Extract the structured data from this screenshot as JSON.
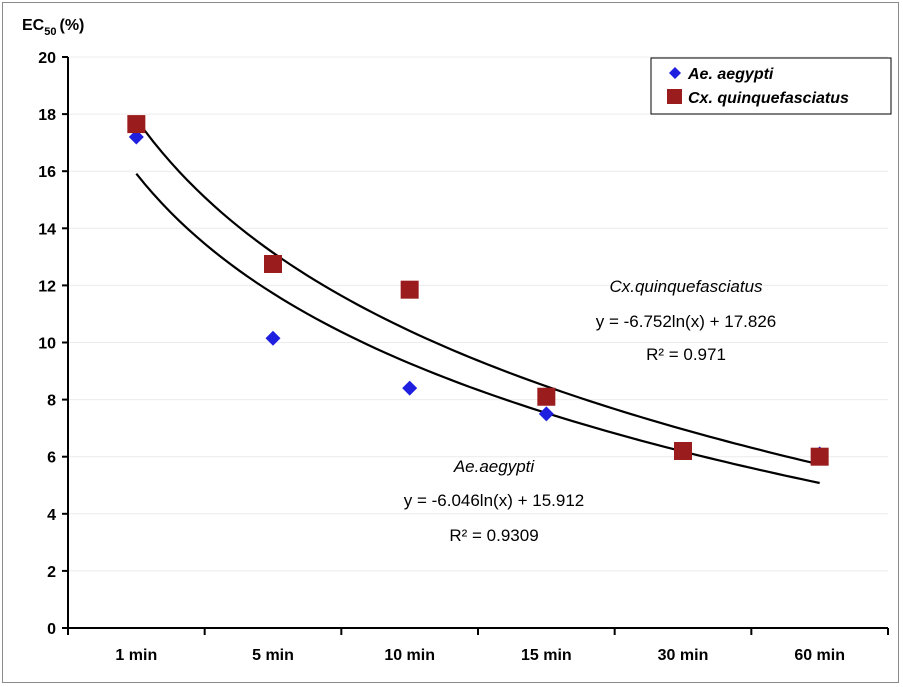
{
  "chart_data": {
    "type": "scatter",
    "ylabel": "EC",
    "ylabel_sub": "50",
    "ylabel_unit": "(%)",
    "categories": [
      "1 min",
      "5 min",
      "10 min",
      "15 min",
      "30 min",
      "60 min"
    ],
    "ylim": [
      0,
      20
    ],
    "yticks": [
      0,
      2,
      4,
      6,
      8,
      10,
      12,
      14,
      16,
      18,
      20
    ],
    "grid": true,
    "legend_position": "top-right",
    "series": [
      {
        "name": "Ae. aegypti",
        "marker": "diamond",
        "color": "#1f1fe0",
        "values": [
          17.2,
          10.15,
          8.4,
          7.5,
          6.25,
          6.1
        ],
        "trend": {
          "a": -6.046,
          "b": 15.912
        }
      },
      {
        "name": "Cx. quinquefasciatus",
        "marker": "square",
        "color": "#9b1c1c",
        "values": [
          17.65,
          12.75,
          11.85,
          8.1,
          6.2,
          6.0
        ],
        "trend": {
          "a": -6.752,
          "b": 17.826
        }
      }
    ],
    "annotations": {
      "cx": {
        "name": "Cx.quinquefasciatus",
        "equation": "y = -6.752ln(x) + 17.826",
        "r2": "R² = 0.971"
      },
      "ae": {
        "name": "Ae.aegypti",
        "equation": "y = -6.046ln(x) + 15.912",
        "r2": "R² = 0.9309"
      }
    }
  }
}
